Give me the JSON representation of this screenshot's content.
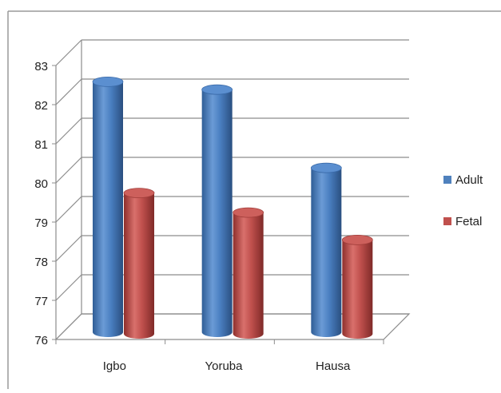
{
  "chart_data": {
    "type": "bar",
    "categories": [
      "Igbo",
      "Yoruba",
      "Hausa"
    ],
    "series": [
      {
        "name": "Adult",
        "values": [
          82.4,
          82.2,
          80.2
        ],
        "color": "#4f81bd"
      },
      {
        "name": "Fetal",
        "values": [
          79.6,
          79.1,
          78.4
        ],
        "color": "#c0504d"
      }
    ],
    "ylim": [
      76,
      83
    ],
    "yticks": [
      "76",
      "77",
      "78",
      "79",
      "80",
      "81",
      "82",
      "83"
    ],
    "grid": true,
    "legend_position": "right",
    "style": "3d-cylinder"
  }
}
